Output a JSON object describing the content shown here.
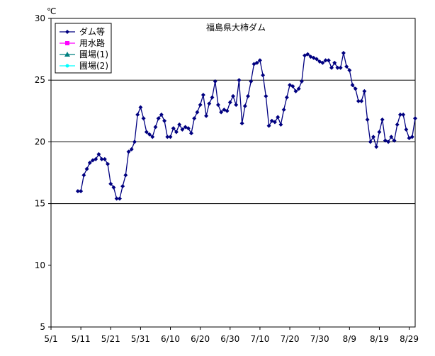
{
  "chart_data": {
    "type": "line",
    "title": "福島県大柿ダム",
    "ylabel": "℃",
    "xlabel": "",
    "ylim": [
      5,
      30
    ],
    "yticks": [
      "5",
      "10",
      "15",
      "20",
      "25",
      "30"
    ],
    "y_gridlines": [
      15,
      20,
      25
    ],
    "x_start": "5/1",
    "x_end": "8/31",
    "xticks": [
      "5/1",
      "5/11",
      "5/21",
      "5/31",
      "6/10",
      "6/20",
      "6/30",
      "7/10",
      "7/20",
      "7/30",
      "8/9",
      "8/19",
      "8/29"
    ],
    "legend_position": "top-left",
    "series": [
      {
        "name": "ダム等",
        "color": "#000080",
        "marker": "diamond",
        "x": [
          "5/10",
          "5/11",
          "5/12",
          "5/13",
          "5/14",
          "5/15",
          "5/16",
          "5/17",
          "5/18",
          "5/19",
          "5/20",
          "5/21",
          "5/22",
          "5/23",
          "5/24",
          "5/25",
          "5/26",
          "5/27",
          "5/28",
          "5/29",
          "5/30",
          "5/31",
          "6/1",
          "6/2",
          "6/3",
          "6/4",
          "6/5",
          "6/6",
          "6/7",
          "6/8",
          "6/9",
          "6/10",
          "6/11",
          "6/12",
          "6/13",
          "6/14",
          "6/15",
          "6/16",
          "6/17",
          "6/18",
          "6/19",
          "6/20",
          "6/21",
          "6/22",
          "6/23",
          "6/24",
          "6/25",
          "6/26",
          "6/27",
          "6/28",
          "6/29",
          "6/30",
          "7/1",
          "7/2",
          "7/3",
          "7/4",
          "7/5",
          "7/6",
          "7/7",
          "7/8",
          "7/9",
          "7/10",
          "7/11",
          "7/12",
          "7/13",
          "7/14",
          "7/15",
          "7/16",
          "7/17",
          "7/18",
          "7/19",
          "7/20",
          "7/21",
          "7/22",
          "7/23",
          "7/24",
          "7/25",
          "7/26",
          "7/27",
          "7/28",
          "7/29",
          "7/30",
          "7/31",
          "8/1",
          "8/2",
          "8/3",
          "8/4",
          "8/5",
          "8/6",
          "8/7",
          "8/8",
          "8/9",
          "8/10",
          "8/11",
          "8/12",
          "8/13",
          "8/14",
          "8/15",
          "8/16",
          "8/17",
          "8/18",
          "8/19",
          "8/20",
          "8/21",
          "8/22",
          "8/23",
          "8/24",
          "8/25",
          "8/26",
          "8/27",
          "8/28",
          "8/29",
          "8/30",
          "8/31"
        ],
        "y": [
          16.0,
          16.0,
          17.3,
          17.8,
          18.3,
          18.5,
          18.6,
          19.0,
          18.6,
          18.6,
          18.2,
          16.6,
          16.3,
          15.4,
          15.4,
          16.4,
          17.3,
          19.2,
          19.4,
          20.0,
          22.2,
          22.8,
          21.9,
          20.8,
          20.6,
          20.4,
          21.2,
          21.9,
          22.2,
          21.7,
          20.4,
          20.4,
          21.1,
          20.8,
          21.4,
          21.0,
          21.2,
          21.1,
          20.7,
          21.9,
          22.4,
          23.0,
          23.8,
          22.1,
          23.1,
          23.6,
          24.9,
          23.0,
          22.4,
          22.6,
          22.5,
          23.2,
          23.7,
          23.0,
          25.0,
          21.5,
          22.9,
          23.7,
          24.9,
          26.3,
          26.4,
          26.6,
          25.4,
          23.7,
          21.3,
          21.7,
          21.6,
          22.0,
          21.4,
          22.6,
          23.6,
          24.6,
          24.5,
          24.1,
          24.3,
          24.9,
          27.0,
          27.1,
          26.9,
          26.8,
          26.7,
          26.5,
          26.4,
          26.6,
          26.6,
          26.0,
          26.4,
          26.0,
          26.0,
          27.2,
          26.1,
          25.8,
          24.6,
          24.3,
          23.3,
          23.3,
          24.1,
          21.8,
          20.0,
          20.4,
          19.6,
          20.8,
          21.8,
          20.1,
          20.0,
          20.4,
          20.1,
          21.4,
          22.2,
          22.2,
          21.0,
          20.3,
          20.4,
          21.9
        ]
      },
      {
        "name": "用水路",
        "color": "#FF00FF",
        "marker": "square",
        "x": [],
        "y": []
      },
      {
        "name": "圃場(1)",
        "color": "#008080",
        "marker": "triangle",
        "x": [],
        "y": []
      },
      {
        "name": "圃場(2)",
        "color": "#00FFFF",
        "marker": "circle",
        "x": [],
        "y": []
      }
    ]
  }
}
